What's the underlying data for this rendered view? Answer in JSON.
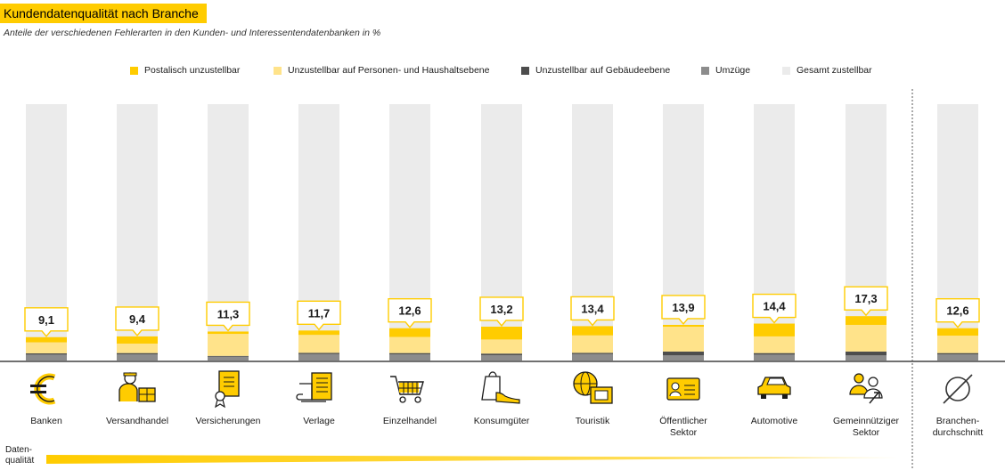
{
  "title": "Kundendatenqualität nach Branche",
  "subtitle": "Anteile der verschiedenen Fehlerarten in den Kunden- und Interessentendatenbanken in %",
  "colors": {
    "postalisch": "#ffcc00",
    "personen": "#ffe38a",
    "gebaeude": "#4d4d4d",
    "umzuege": "#8c8c8c",
    "gesamt": "#ebebeb"
  },
  "legend": [
    {
      "key": "postalisch",
      "label": "Postalisch unzustellbar"
    },
    {
      "key": "personen",
      "label": "Unzustellbar auf Personen- und Haushaltsebene"
    },
    {
      "key": "gebaeude",
      "label": "Unzustellbar auf Gebäudeebene"
    },
    {
      "key": "umzuege",
      "label": "Umzüge"
    },
    {
      "key": "gesamt",
      "label": "Gesamt zustellbar"
    }
  ],
  "data_quality_label": [
    "Daten-",
    "qualität"
  ],
  "chart_data": {
    "type": "bar",
    "stacked": true,
    "ylim": [
      0,
      100
    ],
    "categories": [
      {
        "label": [
          "Banken"
        ],
        "icon": "euro-icon",
        "total": "9,1"
      },
      {
        "label": [
          "Versandhandel"
        ],
        "icon": "delivery-person-icon",
        "total": "9,4"
      },
      {
        "label": [
          "Versicherungen"
        ],
        "icon": "certificate-icon",
        "total": "11,3"
      },
      {
        "label": [
          "Verlage"
        ],
        "icon": "newspaper-icon",
        "total": "11,7"
      },
      {
        "label": [
          "Einzelhandel"
        ],
        "icon": "shopping-cart-icon",
        "total": "12,6"
      },
      {
        "label": [
          "Konsumgüter"
        ],
        "icon": "bag-shoe-icon",
        "total": "13,2"
      },
      {
        "label": [
          "Touristik"
        ],
        "icon": "globe-ticket-icon",
        "total": "13,4"
      },
      {
        "label": [
          "Öffentlicher",
          "Sektor"
        ],
        "icon": "id-card-icon",
        "total": "13,9"
      },
      {
        "label": [
          "Automotive"
        ],
        "icon": "car-icon",
        "total": "14,4"
      },
      {
        "label": [
          "Gemeinnütziger",
          "Sektor"
        ],
        "icon": "people-hand-icon",
        "total": "17,3"
      },
      {
        "label": [
          "Branchen-",
          "durchschnitt"
        ],
        "icon": "diameter-icon",
        "total": "12,6"
      }
    ],
    "series": [
      {
        "name": "Umzüge",
        "key": "umzuege",
        "values": [
          2.3,
          2.4,
          1.5,
          2.5,
          2.4,
          2.1,
          2.5,
          2.0,
          2.3,
          2.0,
          2.4
        ]
      },
      {
        "name": "Unzustellbar auf Gebäudeebene",
        "key": "gebaeude",
        "values": [
          0.5,
          0.5,
          0.3,
          0.5,
          0.5,
          0.6,
          0.5,
          1.5,
          0.6,
          1.5,
          0.5
        ]
      },
      {
        "name": "Unzustellbar auf Personen- und Haushaltsebene",
        "key": "personen",
        "values": [
          4.3,
          3.7,
          8.6,
          7.0,
          6.3,
          5.5,
          6.8,
          9.7,
          6.5,
          10.4,
          6.8
        ]
      },
      {
        "name": "Postalisch unzustellbar",
        "key": "postalisch",
        "values": [
          2.0,
          2.8,
          0.9,
          1.7,
          3.4,
          5.0,
          3.6,
          0.7,
          5.0,
          3.4,
          2.9
        ]
      }
    ],
    "remainder": {
      "name": "Gesamt zustellbar",
      "key": "gesamt"
    }
  }
}
